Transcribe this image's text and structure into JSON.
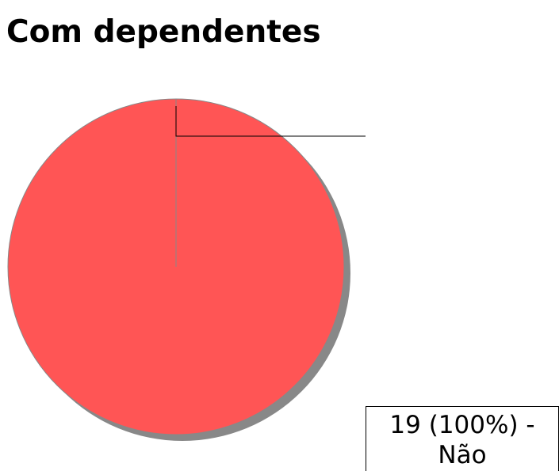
{
  "chart_data": {
    "type": "pie",
    "title": "Com dependentes",
    "categories": [
      "Não"
    ],
    "values": [
      19
    ],
    "value_labels": [
      "19 (100%) - Não"
    ],
    "colors": [
      "#ff5555"
    ]
  }
}
